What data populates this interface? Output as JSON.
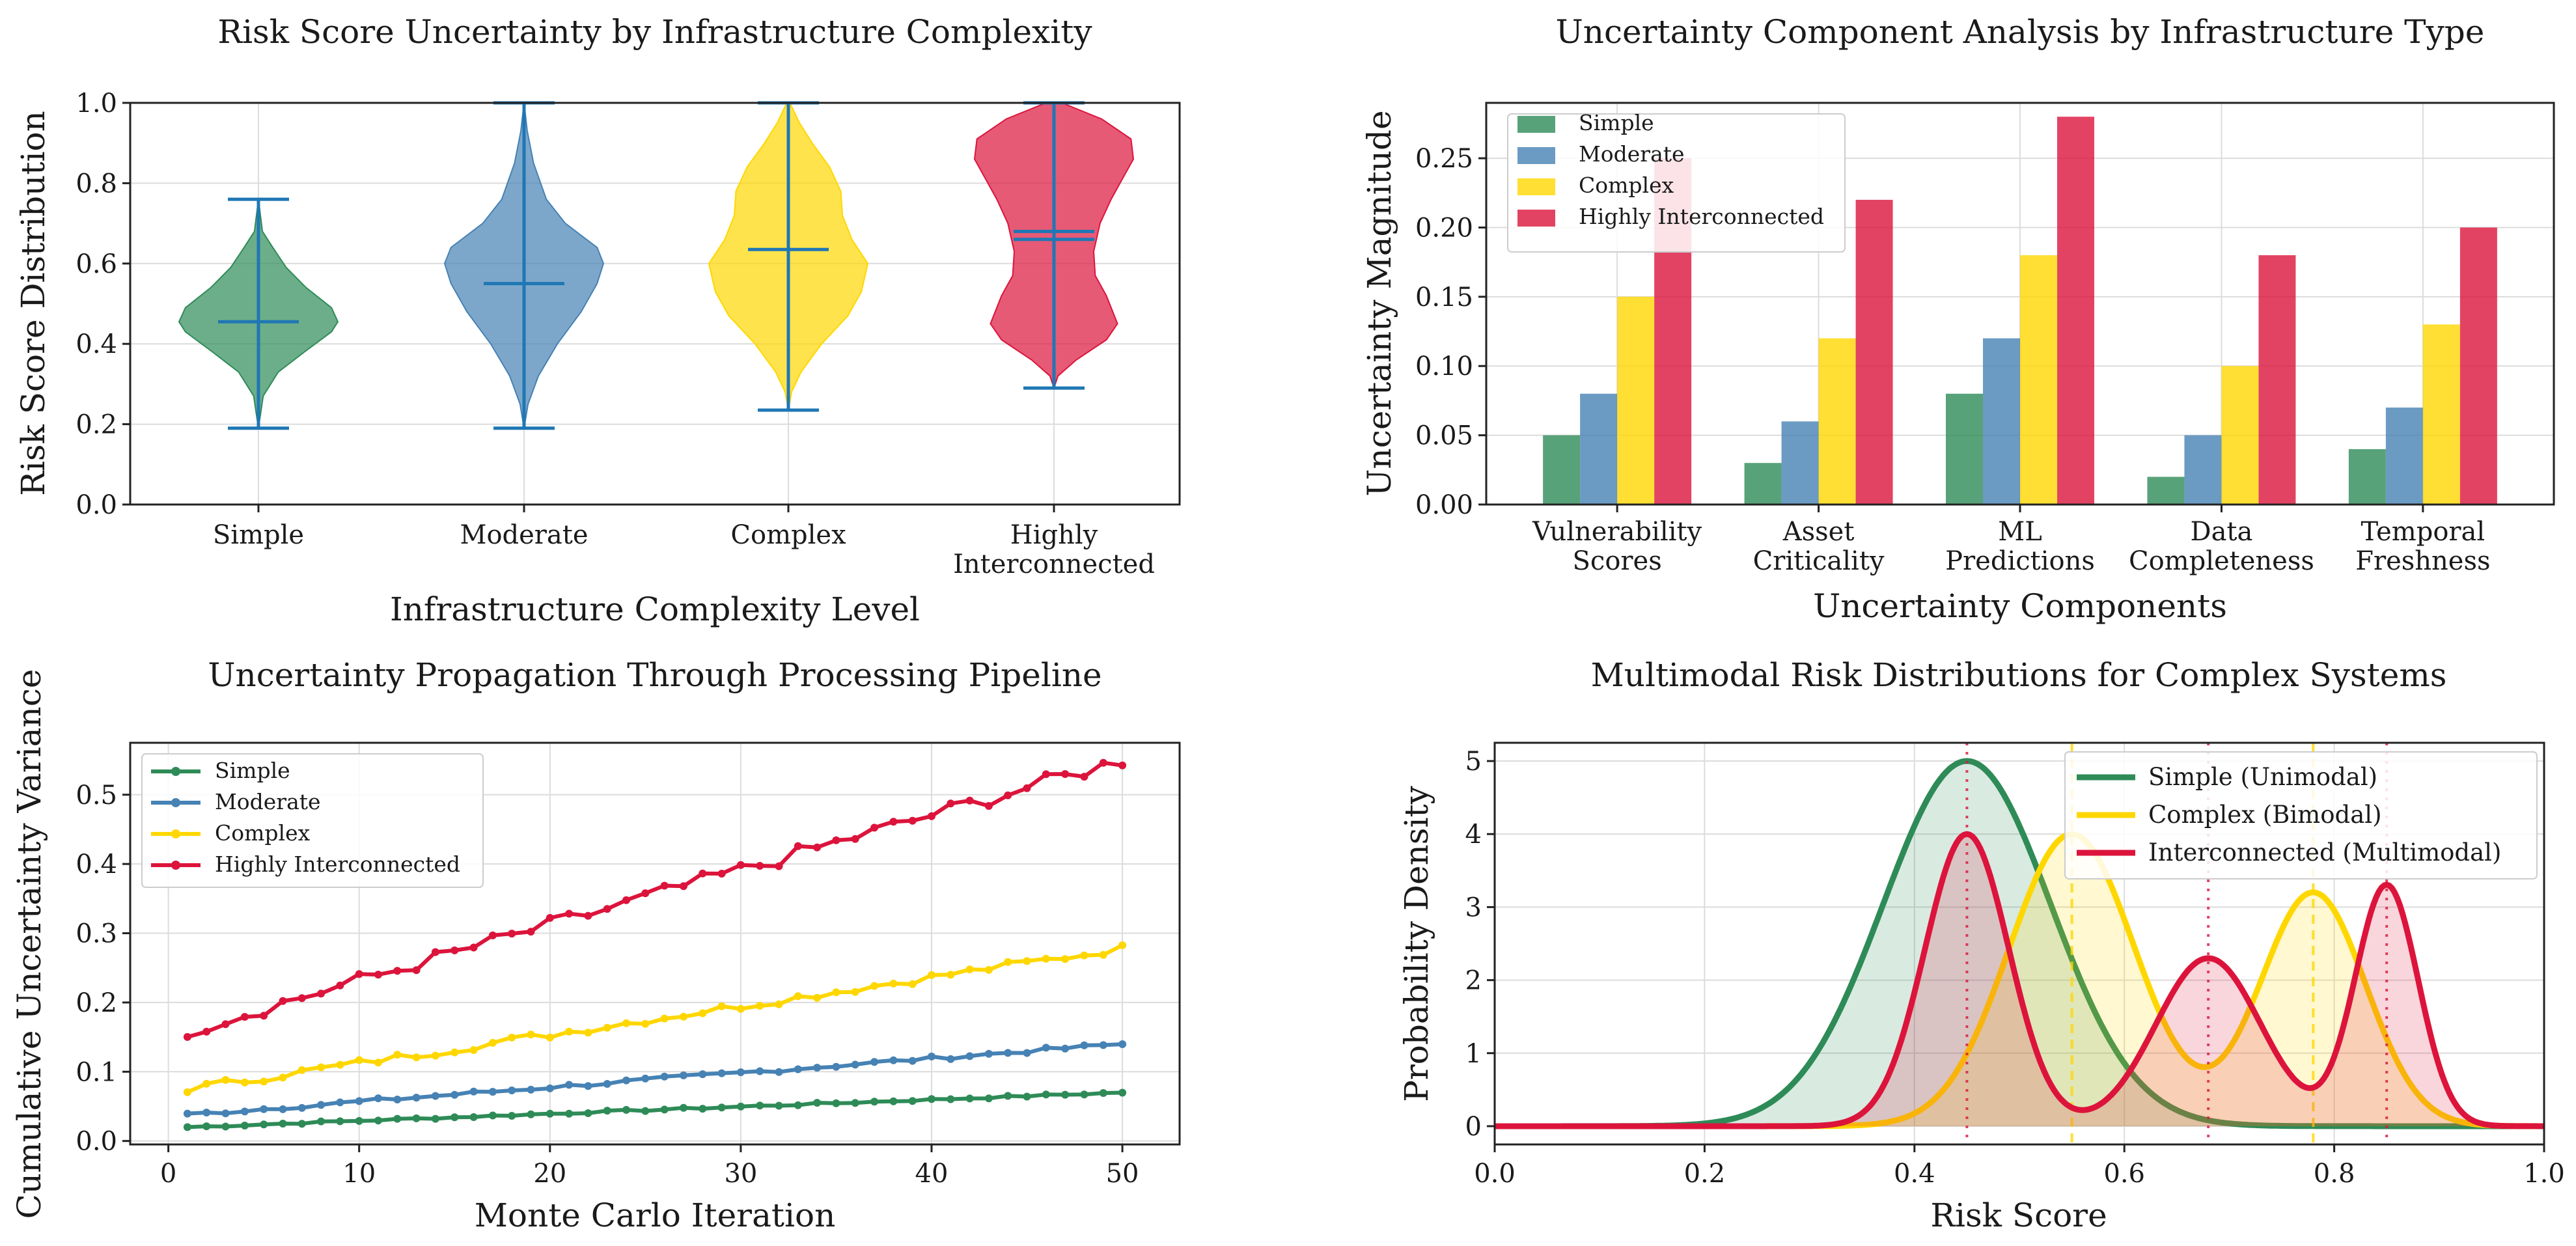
{
  "colors": {
    "simple": "#2e8b57",
    "moderate": "#4682b4",
    "complex": "#ffd700",
    "interconnected": "#dc143c",
    "violin_lines": "#1f77b4"
  },
  "chart_data": [
    {
      "id": "violin",
      "type": "violin",
      "title": "Risk Score Uncertainty by Infrastructure Complexity",
      "xlabel": "Infrastructure Complexity Level",
      "ylabel": "Risk Score Distribution",
      "ylim": [
        0,
        1
      ],
      "yticks": [
        "0.0",
        "0.2",
        "0.4",
        "0.6",
        "0.8",
        "1.0"
      ],
      "categories": [
        "Simple",
        "Moderate",
        "Complex",
        "Highly Interconnected"
      ],
      "category_lines": [
        [
          "Simple"
        ],
        [
          "Moderate"
        ],
        [
          "Complex"
        ],
        [
          "Highly",
          "Interconnected"
        ]
      ],
      "stats": [
        {
          "min": 0.19,
          "max": 0.76,
          "mean": 0.455,
          "median": 0.455
        },
        {
          "min": 0.19,
          "max": 1.0,
          "mean": 0.55,
          "median": 0.55
        },
        {
          "min": 0.235,
          "max": 1.0,
          "mean": 0.635,
          "median": 0.635
        },
        {
          "min": 0.29,
          "max": 1.0,
          "mean": 0.68,
          "median": 0.66
        }
      ],
      "profiles": [
        [
          [
            0.19,
            0
          ],
          [
            0.27,
            0.06
          ],
          [
            0.33,
            0.25
          ],
          [
            0.38,
            0.58
          ],
          [
            0.43,
            0.92
          ],
          [
            0.455,
            1.0
          ],
          [
            0.49,
            0.92
          ],
          [
            0.54,
            0.6
          ],
          [
            0.59,
            0.35
          ],
          [
            0.64,
            0.18
          ],
          [
            0.68,
            0.05
          ],
          [
            0.76,
            0
          ]
        ],
        [
          [
            0.19,
            0
          ],
          [
            0.25,
            0.05
          ],
          [
            0.32,
            0.18
          ],
          [
            0.4,
            0.42
          ],
          [
            0.48,
            0.72
          ],
          [
            0.55,
            0.92
          ],
          [
            0.6,
            1.0
          ],
          [
            0.64,
            0.92
          ],
          [
            0.7,
            0.52
          ],
          [
            0.76,
            0.28
          ],
          [
            0.85,
            0.12
          ],
          [
            0.93,
            0.04
          ],
          [
            1.0,
            0
          ]
        ],
        [
          [
            0.235,
            0
          ],
          [
            0.28,
            0.04
          ],
          [
            0.33,
            0.16
          ],
          [
            0.4,
            0.42
          ],
          [
            0.47,
            0.75
          ],
          [
            0.53,
            0.92
          ],
          [
            0.6,
            1.0
          ],
          [
            0.66,
            0.8
          ],
          [
            0.72,
            0.68
          ],
          [
            0.78,
            0.66
          ],
          [
            0.84,
            0.52
          ],
          [
            0.9,
            0.3
          ],
          [
            0.95,
            0.14
          ],
          [
            1.0,
            0.02
          ]
        ],
        [
          [
            0.29,
            0
          ],
          [
            0.32,
            0.05
          ],
          [
            0.36,
            0.28
          ],
          [
            0.41,
            0.66
          ],
          [
            0.45,
            0.8
          ],
          [
            0.52,
            0.66
          ],
          [
            0.57,
            0.52
          ],
          [
            0.63,
            0.5
          ],
          [
            0.7,
            0.58
          ],
          [
            0.76,
            0.72
          ],
          [
            0.81,
            0.86
          ],
          [
            0.86,
            1.0
          ],
          [
            0.91,
            0.97
          ],
          [
            0.96,
            0.6
          ],
          [
            1.0,
            0.1
          ]
        ]
      ]
    },
    {
      "id": "grouped-bar",
      "type": "bar",
      "title": "Uncertainty Component Analysis by Infrastructure Type",
      "xlabel": "Uncertainty Components",
      "ylabel": "Uncertainty Magnitude",
      "ylim": [
        0,
        0.29
      ],
      "yticks": [
        "0.00",
        "0.05",
        "0.10",
        "0.15",
        "0.20",
        "0.25"
      ],
      "categories": [
        "Vulnerability Scores",
        "Asset Criticality",
        "ML Predictions",
        "Data Completeness",
        "Temporal Freshness"
      ],
      "category_lines": [
        [
          "Vulnerability",
          "Scores"
        ],
        [
          "Asset",
          "Criticality"
        ],
        [
          "ML",
          "Predictions"
        ],
        [
          "Data",
          "Completeness"
        ],
        [
          "Temporal",
          "Freshness"
        ]
      ],
      "legend": "top-left",
      "series": [
        {
          "name": "Simple",
          "values": [
            0.05,
            0.03,
            0.08,
            0.02,
            0.04
          ]
        },
        {
          "name": "Moderate",
          "values": [
            0.08,
            0.06,
            0.12,
            0.05,
            0.07
          ]
        },
        {
          "name": "Complex",
          "values": [
            0.15,
            0.12,
            0.18,
            0.1,
            0.13
          ]
        },
        {
          "name": "Highly Interconnected",
          "values": [
            0.25,
            0.22,
            0.28,
            0.18,
            0.2
          ]
        }
      ]
    },
    {
      "id": "propagation",
      "type": "line",
      "title": "Uncertainty Propagation Through Processing Pipeline",
      "xlabel": "Monte Carlo Iteration",
      "ylabel": "Cumulative Uncertainty Variance",
      "xlim": [
        -2,
        53
      ],
      "ylim": [
        -0.005,
        0.575
      ],
      "xticks": [
        "0",
        "10",
        "20",
        "30",
        "40",
        "50"
      ],
      "yticks": [
        "0.0",
        "0.1",
        "0.2",
        "0.3",
        "0.4",
        "0.5"
      ],
      "legend": "top-left",
      "series": [
        {
          "name": "Simple",
          "start": 0.02,
          "end": 0.07
        },
        {
          "name": "Moderate",
          "start": 0.038,
          "end": 0.14
        },
        {
          "name": "Complex",
          "start": 0.075,
          "end": 0.278
        },
        {
          "name": "Highly Interconnected",
          "start": 0.16,
          "end": 0.55
        }
      ]
    },
    {
      "id": "densities",
      "type": "line",
      "title": "Multimodal Risk Distributions for Complex Systems",
      "xlabel": "Risk Score",
      "ylabel": "Probability Density",
      "xlim": [
        0,
        1
      ],
      "ylim": [
        -0.25,
        5.25
      ],
      "xticks": [
        "0.0",
        "0.2",
        "0.4",
        "0.6",
        "0.8",
        "1.0"
      ],
      "yticks": [
        "0",
        "1",
        "2",
        "3",
        "4",
        "5"
      ],
      "legend": "top-right",
      "series": [
        {
          "name": "Simple (Unimodal)",
          "components": [
            [
              5.0,
              0.45,
              0.08
            ]
          ],
          "markers": []
        },
        {
          "name": "Complex (Bimodal)",
          "components": [
            [
              4.0,
              0.55,
              0.06
            ],
            [
              3.2,
              0.78,
              0.05
            ]
          ],
          "markers": [
            0.55,
            0.78
          ]
        },
        {
          "name": "Interconnected (Multimodal)",
          "components": [
            [
              4.0,
              0.45,
              0.04
            ],
            [
              2.3,
              0.68,
              0.05
            ],
            [
              3.3,
              0.85,
              0.03
            ]
          ],
          "markers": [
            0.45,
            0.68,
            0.85
          ]
        }
      ]
    }
  ]
}
